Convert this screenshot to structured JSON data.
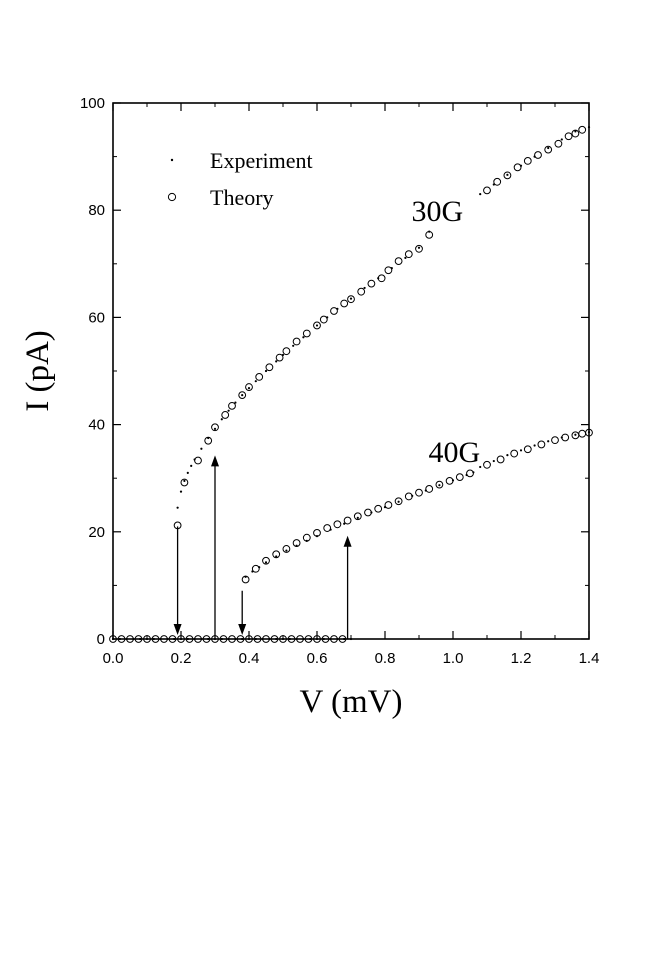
{
  "chart_data": {
    "type": "scatter",
    "xlabel": "V (mV)",
    "ylabel": "I (pA)",
    "xlim": [
      0,
      1.4
    ],
    "ylim": [
      0,
      100
    ],
    "xticks": [
      "0.0",
      "0.2",
      "0.4",
      "0.6",
      "0.8",
      "1.0",
      "1.2",
      "1.4"
    ],
    "yticks": [
      "0",
      "20",
      "40",
      "60",
      "80",
      "100"
    ],
    "grid": false,
    "legend_position": "top-left",
    "legend": [
      {
        "label": "Experiment",
        "marker": "dot"
      },
      {
        "label": "Theory",
        "marker": "open-circle"
      }
    ],
    "annotations": [
      {
        "text": "30G",
        "x": 1.03,
        "y": 78
      },
      {
        "text": "40G",
        "x": 1.08,
        "y": 33
      }
    ],
    "arrows": [
      {
        "x": 0.19,
        "from": 21,
        "to": 0,
        "direction": "down"
      },
      {
        "x": 0.3,
        "from": 0,
        "to": 35,
        "direction": "up"
      },
      {
        "x": 0.38,
        "from": 9,
        "to": 0,
        "direction": "down"
      },
      {
        "x": 0.69,
        "from": 0,
        "to": 20,
        "direction": "up"
      }
    ],
    "series": [
      {
        "name": "Experiment",
        "curve": "30G",
        "marker": "dot",
        "x": [
          0.19,
          0.2,
          0.21,
          0.22,
          0.23,
          0.24,
          0.26,
          0.28,
          0.3,
          0.32,
          0.34,
          0.36,
          0.38,
          0.4,
          0.42,
          0.45,
          0.48,
          0.5,
          0.53,
          0.56,
          0.6,
          0.63,
          0.66,
          0.7,
          0.74,
          0.78,
          0.82,
          0.86,
          0.9,
          0.93,
          1.08,
          1.12,
          1.16,
          1.2,
          1.24,
          1.28,
          1.32,
          1.36,
          1.4
        ],
        "y": [
          24.5,
          27.5,
          29.5,
          31,
          32.3,
          33.5,
          35.5,
          37.5,
          39.2,
          41,
          42.6,
          44.1,
          45.5,
          46.8,
          48.1,
          50,
          51.8,
          53,
          54.7,
          56.3,
          58.5,
          60,
          61.6,
          63.5,
          65.5,
          67.3,
          69.2,
          71.1,
          73,
          76,
          83,
          84.8,
          86.6,
          88.3,
          90,
          91.6,
          93.2,
          94.7,
          95.5
        ]
      },
      {
        "name": "Theory",
        "curve": "30G",
        "marker": "open-circle",
        "x": [
          0.19,
          0.21,
          0.25,
          0.28,
          0.3,
          0.33,
          0.35,
          0.38,
          0.4,
          0.43,
          0.46,
          0.49,
          0.51,
          0.54,
          0.57,
          0.6,
          0.62,
          0.65,
          0.68,
          0.7,
          0.73,
          0.76,
          0.79,
          0.81,
          0.84,
          0.87,
          0.9,
          0.93,
          1.1,
          1.13,
          1.16,
          1.19,
          1.22,
          1.25,
          1.28,
          1.31,
          1.34,
          1.36,
          1.38
        ],
        "y": [
          21.2,
          29.2,
          33.3,
          37,
          39.5,
          41.8,
          43.5,
          45.5,
          47,
          48.9,
          50.7,
          52.5,
          53.7,
          55.5,
          57,
          58.5,
          59.6,
          61.2,
          62.6,
          63.4,
          64.8,
          66.3,
          67.3,
          68.8,
          70.5,
          71.8,
          72.8,
          75.4,
          83.7,
          85.3,
          86.5,
          88,
          89.2,
          90.3,
          91.3,
          92.4,
          93.8,
          94.3,
          95
        ]
      },
      {
        "name": "Experiment",
        "curve": "40G",
        "marker": "dot",
        "x": [
          0.39,
          0.41,
          0.43,
          0.45,
          0.48,
          0.51,
          0.54,
          0.57,
          0.6,
          0.64,
          0.68,
          0.72,
          0.76,
          0.8,
          0.84,
          0.88,
          0.92,
          0.96,
          1.0,
          1.04,
          1.06,
          1.08,
          1.12,
          1.16,
          1.2,
          1.24,
          1.28,
          1.32,
          1.36,
          1.4
        ],
        "y": [
          11.6,
          12.6,
          13.4,
          14.3,
          15.4,
          16.5,
          17.4,
          18.3,
          19.2,
          20.4,
          21.5,
          22.6,
          23.6,
          24.6,
          25.6,
          26.7,
          27.7,
          28.7,
          29.6,
          30.6,
          31.1,
          32.1,
          33.2,
          34.3,
          35.2,
          36.1,
          36.9,
          37.6,
          38.1,
          38.6
        ]
      },
      {
        "name": "Theory",
        "curve": "40G",
        "marker": "open-circle",
        "x": [
          0.39,
          0.42,
          0.45,
          0.48,
          0.51,
          0.54,
          0.57,
          0.6,
          0.63,
          0.66,
          0.69,
          0.72,
          0.75,
          0.78,
          0.81,
          0.84,
          0.87,
          0.9,
          0.93,
          0.96,
          0.99,
          1.02,
          1.05,
          1.1,
          1.14,
          1.18,
          1.22,
          1.26,
          1.3,
          1.33,
          1.36,
          1.38,
          1.4
        ],
        "y": [
          11.1,
          13.1,
          14.6,
          15.8,
          16.8,
          17.9,
          18.9,
          19.8,
          20.7,
          21.4,
          22.1,
          22.9,
          23.6,
          24.3,
          25,
          25.7,
          26.6,
          27.3,
          28,
          28.8,
          29.5,
          30.2,
          30.9,
          32.5,
          33.5,
          34.6,
          35.4,
          36.3,
          37.1,
          37.6,
          38,
          38.3,
          38.5
        ]
      },
      {
        "name": "Theory",
        "curve": "zero-current",
        "marker": "open-circle",
        "x": [
          0.0,
          0.025,
          0.05,
          0.075,
          0.1,
          0.125,
          0.15,
          0.175,
          0.2,
          0.225,
          0.25,
          0.275,
          0.3,
          0.325,
          0.35,
          0.375,
          0.4,
          0.425,
          0.45,
          0.475,
          0.5,
          0.525,
          0.55,
          0.575,
          0.6,
          0.625,
          0.65,
          0.675
        ],
        "y": [
          0,
          0,
          0,
          0,
          0,
          0,
          0,
          0,
          0,
          0,
          0,
          0,
          0,
          0,
          0,
          0,
          0,
          0,
          0,
          0,
          0,
          0,
          0,
          0,
          0,
          0,
          0,
          0
        ]
      },
      {
        "name": "Experiment",
        "curve": "zero-current",
        "marker": "dot",
        "x": [
          0.0,
          0.02,
          0.04,
          0.06,
          0.08,
          0.1,
          0.12,
          0.14,
          0.16,
          0.18,
          0.2,
          0.22,
          0.24,
          0.26,
          0.28,
          0.3,
          0.32,
          0.34,
          0.36,
          0.38,
          0.4,
          0.42,
          0.44,
          0.46,
          0.48,
          0.5,
          0.52,
          0.54,
          0.56,
          0.58,
          0.6,
          0.62,
          0.64,
          0.66,
          0.68,
          0.7
        ],
        "y": [
          0,
          0,
          0,
          0,
          0,
          0,
          0,
          0,
          0,
          0,
          0,
          0,
          0,
          0,
          0,
          0,
          0,
          0,
          0,
          0,
          0,
          0,
          0,
          0,
          0,
          0,
          0,
          0,
          0,
          0,
          0,
          0,
          0,
          0,
          0,
          0
        ]
      }
    ]
  }
}
